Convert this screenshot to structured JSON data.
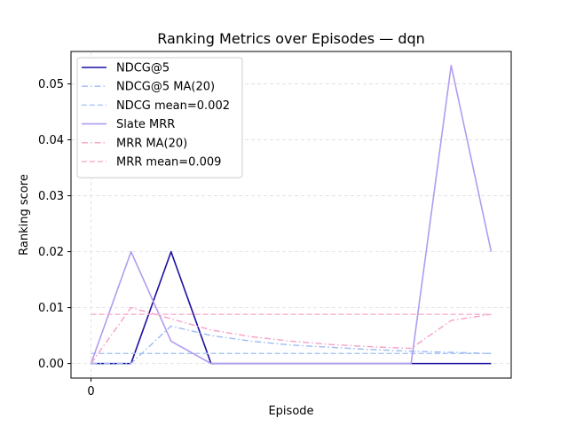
{
  "chart_data": {
    "type": "line",
    "title": "Ranking Metrics over Episodes — dqn",
    "xlabel": "Episode",
    "ylabel": "Ranking score",
    "x": [
      0,
      1,
      2,
      3,
      4,
      5,
      6,
      7,
      8,
      9,
      10
    ],
    "x_tick_labels": [
      "0"
    ],
    "y_ticks": [
      0.0,
      0.01,
      0.02,
      0.03,
      0.04,
      0.05
    ],
    "y_tick_labels": [
      "0.00",
      "0.01",
      "0.02",
      "0.03",
      "0.04",
      "0.05"
    ],
    "xlim": [
      -0.5,
      10.5
    ],
    "ylim": [
      -0.0026,
      0.0558
    ],
    "grid": true,
    "legend_position": "upper-left",
    "series": [
      {
        "name": "NDCG@5",
        "color": "#1a0ea0",
        "style": "solid",
        "width": 1.6,
        "values": [
          0,
          0,
          0.02,
          0,
          0,
          0,
          0,
          0,
          0,
          0,
          0
        ]
      },
      {
        "name": "NDCG@5 MA(20)",
        "color": "#9dbbf5",
        "style": "dashdot",
        "width": 1.4,
        "values": [
          0,
          0,
          0.0067,
          0.005,
          0.004,
          0.0033,
          0.0029,
          0.0025,
          0.0022,
          0.002,
          0.0018
        ]
      },
      {
        "name": "NDCG mean=0.002",
        "color": "#a9c5f3",
        "style": "dashed",
        "width": 1.4,
        "values": [
          0.0018,
          0.0018,
          0.0018,
          0.0018,
          0.0018,
          0.0018,
          0.0018,
          0.0018,
          0.0018,
          0.0018,
          0.0018
        ]
      },
      {
        "name": "Slate MRR",
        "color": "#b19cf0",
        "style": "solid",
        "width": 1.6,
        "values": [
          0,
          0.02,
          0.004,
          0,
          0,
          0,
          0,
          0,
          0,
          0.0533,
          0.02
        ]
      },
      {
        "name": "MRR MA(20)",
        "color": "#f5a0c8",
        "style": "dashdot",
        "width": 1.4,
        "values": [
          0,
          0.01,
          0.008,
          0.006,
          0.0048,
          0.004,
          0.0034,
          0.003,
          0.0027,
          0.0077,
          0.0088
        ]
      },
      {
        "name": "MRR mean=0.009",
        "color": "#f7b0d0",
        "style": "dashed",
        "width": 1.4,
        "values": [
          0.0088,
          0.0088,
          0.0088,
          0.0088,
          0.0088,
          0.0088,
          0.0088,
          0.0088,
          0.0088,
          0.0088,
          0.0088
        ]
      }
    ]
  }
}
